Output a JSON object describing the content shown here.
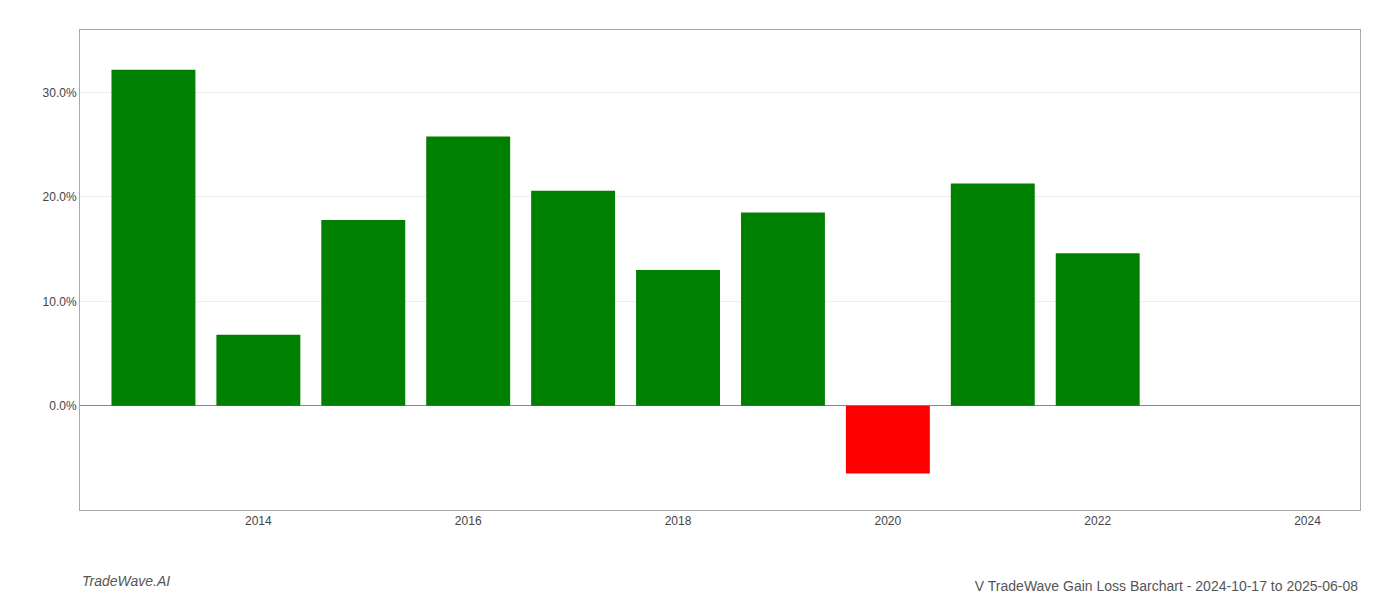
{
  "chart_data": {
    "type": "bar",
    "title": "V TradeWave Gain Loss Barchart - 2024-10-17 to 2025-06-08",
    "annotations": [
      "TradeWave.AI"
    ],
    "x": [
      2013,
      2014,
      2015,
      2016,
      2017,
      2018,
      2019,
      2020,
      2021,
      2022
    ],
    "values": [
      0.322,
      0.068,
      0.178,
      0.258,
      0.206,
      0.13,
      0.185,
      -0.065,
      0.213,
      0.146
    ],
    "colors": [
      "#008000",
      "#008000",
      "#008000",
      "#008000",
      "#008000",
      "#008000",
      "#008000",
      "#ff0000",
      "#008000",
      "#008000"
    ],
    "xlim": [
      2012.3,
      2024.5
    ],
    "xticks": [
      2014,
      2016,
      2018,
      2020,
      2022,
      2024
    ],
    "ylim": [
      -0.1,
      0.36
    ],
    "yticks": [
      {
        "value": 0.0,
        "label": "0.0%"
      },
      {
        "value": 0.1,
        "label": "10.0%"
      },
      {
        "value": 0.2,
        "label": "20.0%"
      },
      {
        "value": 0.3,
        "label": "30.0%"
      }
    ],
    "grid": true
  }
}
